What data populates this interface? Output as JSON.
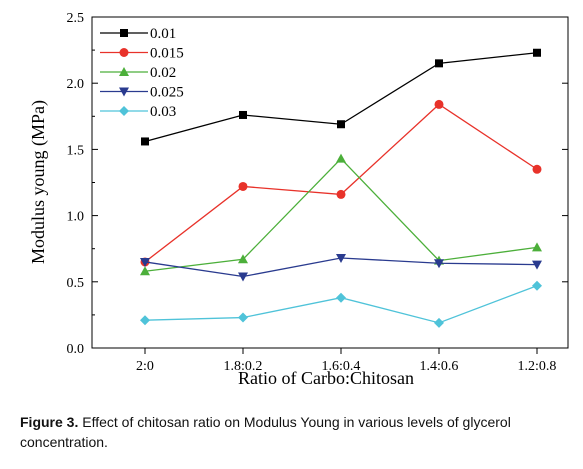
{
  "chart_data": {
    "type": "line",
    "categories": [
      "2:0",
      "1.8:0.2",
      "1.6:0.4",
      "1.4:0.6",
      "1.2:0.8"
    ],
    "xlabel": "Ratio of Carbo:Chitosan",
    "ylabel": "Modulus young (MPa)",
    "ylim": [
      0.0,
      2.5
    ],
    "yticks": [
      "0.0",
      "0.5",
      "1.0",
      "1.5",
      "2.0",
      "2.5"
    ],
    "grid": false,
    "legend_position": "top-left",
    "series": [
      {
        "name": "0.01",
        "color": "#000000",
        "marker": "square",
        "values": [
          1.56,
          1.76,
          1.69,
          2.15,
          2.23
        ]
      },
      {
        "name": "0.015",
        "color": "#e8322a",
        "marker": "circle",
        "values": [
          0.65,
          1.22,
          1.16,
          1.84,
          1.35
        ]
      },
      {
        "name": "0.02",
        "color": "#4caf3a",
        "marker": "triangle-up",
        "values": [
          0.58,
          0.67,
          1.43,
          0.66,
          0.76
        ]
      },
      {
        "name": "0.025",
        "color": "#2a3b8f",
        "marker": "triangle-down",
        "values": [
          0.65,
          0.54,
          0.68,
          0.64,
          0.63
        ]
      },
      {
        "name": "0.03",
        "color": "#4fc3d9",
        "marker": "diamond",
        "values": [
          0.21,
          0.23,
          0.38,
          0.19,
          0.47
        ]
      }
    ]
  },
  "caption": {
    "label": "Figure 3.",
    "text": " Effect of chitosan ratio on Modulus Young in various levels of glycerol concentration."
  }
}
